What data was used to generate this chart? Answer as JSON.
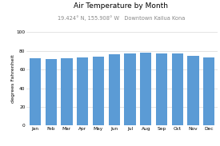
{
  "title": "Air Temperature by Month",
  "subtitle": "19.424° N, 155.908° W   Downtown Kailua Kona",
  "ylabel": "degrees Fahrenheit",
  "months": [
    "Jan",
    "Feb",
    "Mar",
    "Apr",
    "May",
    "Jun",
    "Jul",
    "Aug",
    "Sep",
    "Oct",
    "Nov",
    "Dec"
  ],
  "values": [
    72,
    71,
    72,
    73,
    74,
    76,
    77,
    78,
    77,
    77,
    75,
    73
  ],
  "bar_color": "#5b9bd5",
  "ylim": [
    0,
    100
  ],
  "yticks": [
    0,
    20,
    40,
    60,
    80,
    100
  ],
  "background_color": "#ffffff",
  "title_fontsize": 6.5,
  "subtitle_fontsize": 4.8,
  "axis_label_fontsize": 4.5,
  "tick_fontsize": 4.2,
  "grid_color": "#d0d0d0",
  "subtitle_color": "#888888"
}
